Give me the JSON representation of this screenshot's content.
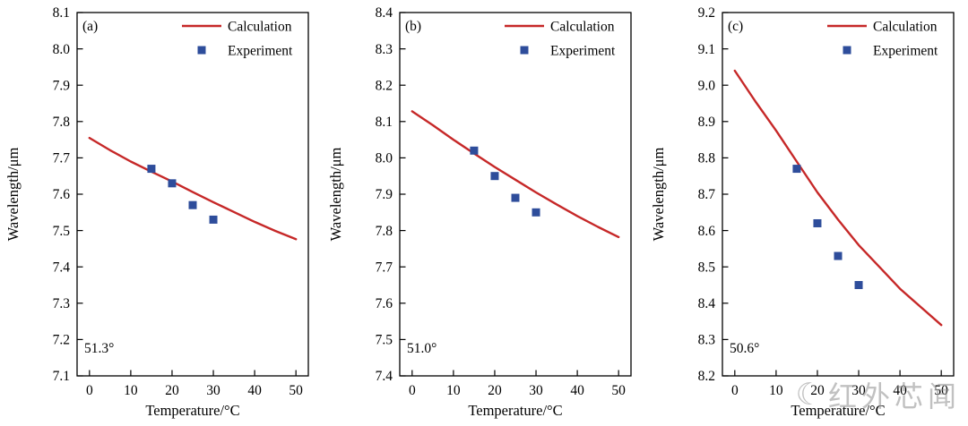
{
  "watermark": {
    "text": "红外芯闻"
  },
  "colors": {
    "calculation": "#c62828",
    "experiment": "#2e4d9b",
    "axis": "#000000",
    "background": "#ffffff"
  },
  "chart_data": [
    {
      "type": "line",
      "panel_label": "(a)",
      "angle_label": "51.3°",
      "xlabel": "Temperature/°C",
      "ylabel": "Wavelength/μm",
      "xlim": [
        -3,
        53
      ],
      "ylim": [
        7.1,
        8.1
      ],
      "xticks": [
        0,
        10,
        20,
        30,
        40,
        50
      ],
      "yticks": [
        7.1,
        7.2,
        7.3,
        7.4,
        7.5,
        7.6,
        7.7,
        7.8,
        7.9,
        8.0,
        8.1
      ],
      "grid": false,
      "legend_position": "top-right",
      "series": [
        {
          "name": "Calculation",
          "type": "line",
          "color_key": "calculation",
          "x": [
            0,
            5,
            10,
            15,
            20,
            25,
            30,
            35,
            40,
            45,
            50
          ],
          "y": [
            7.755,
            7.721,
            7.69,
            7.662,
            7.635,
            7.606,
            7.578,
            7.551,
            7.524,
            7.499,
            7.476
          ]
        },
        {
          "name": "Experiment",
          "type": "scatter",
          "color_key": "experiment",
          "x": [
            15,
            20,
            25,
            30
          ],
          "y": [
            7.67,
            7.63,
            7.57,
            7.53
          ]
        }
      ]
    },
    {
      "type": "line",
      "panel_label": "(b)",
      "angle_label": "51.0°",
      "xlabel": "Temperature/°C",
      "ylabel": "Wavelength/μm",
      "xlim": [
        -3,
        53
      ],
      "ylim": [
        7.4,
        8.4
      ],
      "xticks": [
        0,
        10,
        20,
        30,
        40,
        50
      ],
      "yticks": [
        7.4,
        7.5,
        7.6,
        7.7,
        7.8,
        7.9,
        8.0,
        8.1,
        8.2,
        8.3,
        8.4
      ],
      "grid": false,
      "legend_position": "top-right",
      "series": [
        {
          "name": "Calculation",
          "type": "line",
          "color_key": "calculation",
          "x": [
            0,
            5,
            10,
            15,
            20,
            25,
            30,
            35,
            40,
            45,
            50
          ],
          "y": [
            8.128,
            8.09,
            8.05,
            8.012,
            7.975,
            7.94,
            7.905,
            7.872,
            7.84,
            7.81,
            7.782
          ]
        },
        {
          "name": "Experiment",
          "type": "scatter",
          "color_key": "experiment",
          "x": [
            15,
            20,
            25,
            30
          ],
          "y": [
            8.02,
            7.95,
            7.89,
            7.85
          ]
        }
      ]
    },
    {
      "type": "line",
      "panel_label": "(c)",
      "angle_label": "50.6°",
      "xlabel": "Temperature/°C",
      "ylabel": "Wavelength/μm",
      "xlim": [
        -3,
        53
      ],
      "ylim": [
        8.2,
        9.2
      ],
      "xticks": [
        0,
        10,
        20,
        30,
        40,
        50
      ],
      "yticks": [
        8.2,
        8.3,
        8.4,
        8.5,
        8.6,
        8.7,
        8.8,
        8.9,
        9.0,
        9.1,
        9.2
      ],
      "grid": false,
      "legend_position": "top-right",
      "series": [
        {
          "name": "Calculation",
          "type": "line",
          "color_key": "calculation",
          "x": [
            0,
            5,
            10,
            15,
            20,
            25,
            30,
            35,
            40,
            45,
            50
          ],
          "y": [
            9.04,
            8.955,
            8.875,
            8.79,
            8.705,
            8.63,
            8.56,
            8.5,
            8.44,
            8.39,
            8.34
          ]
        },
        {
          "name": "Experiment",
          "type": "scatter",
          "color_key": "experiment",
          "x": [
            15,
            20,
            25,
            30
          ],
          "y": [
            8.77,
            8.62,
            8.53,
            8.45
          ]
        }
      ]
    }
  ]
}
